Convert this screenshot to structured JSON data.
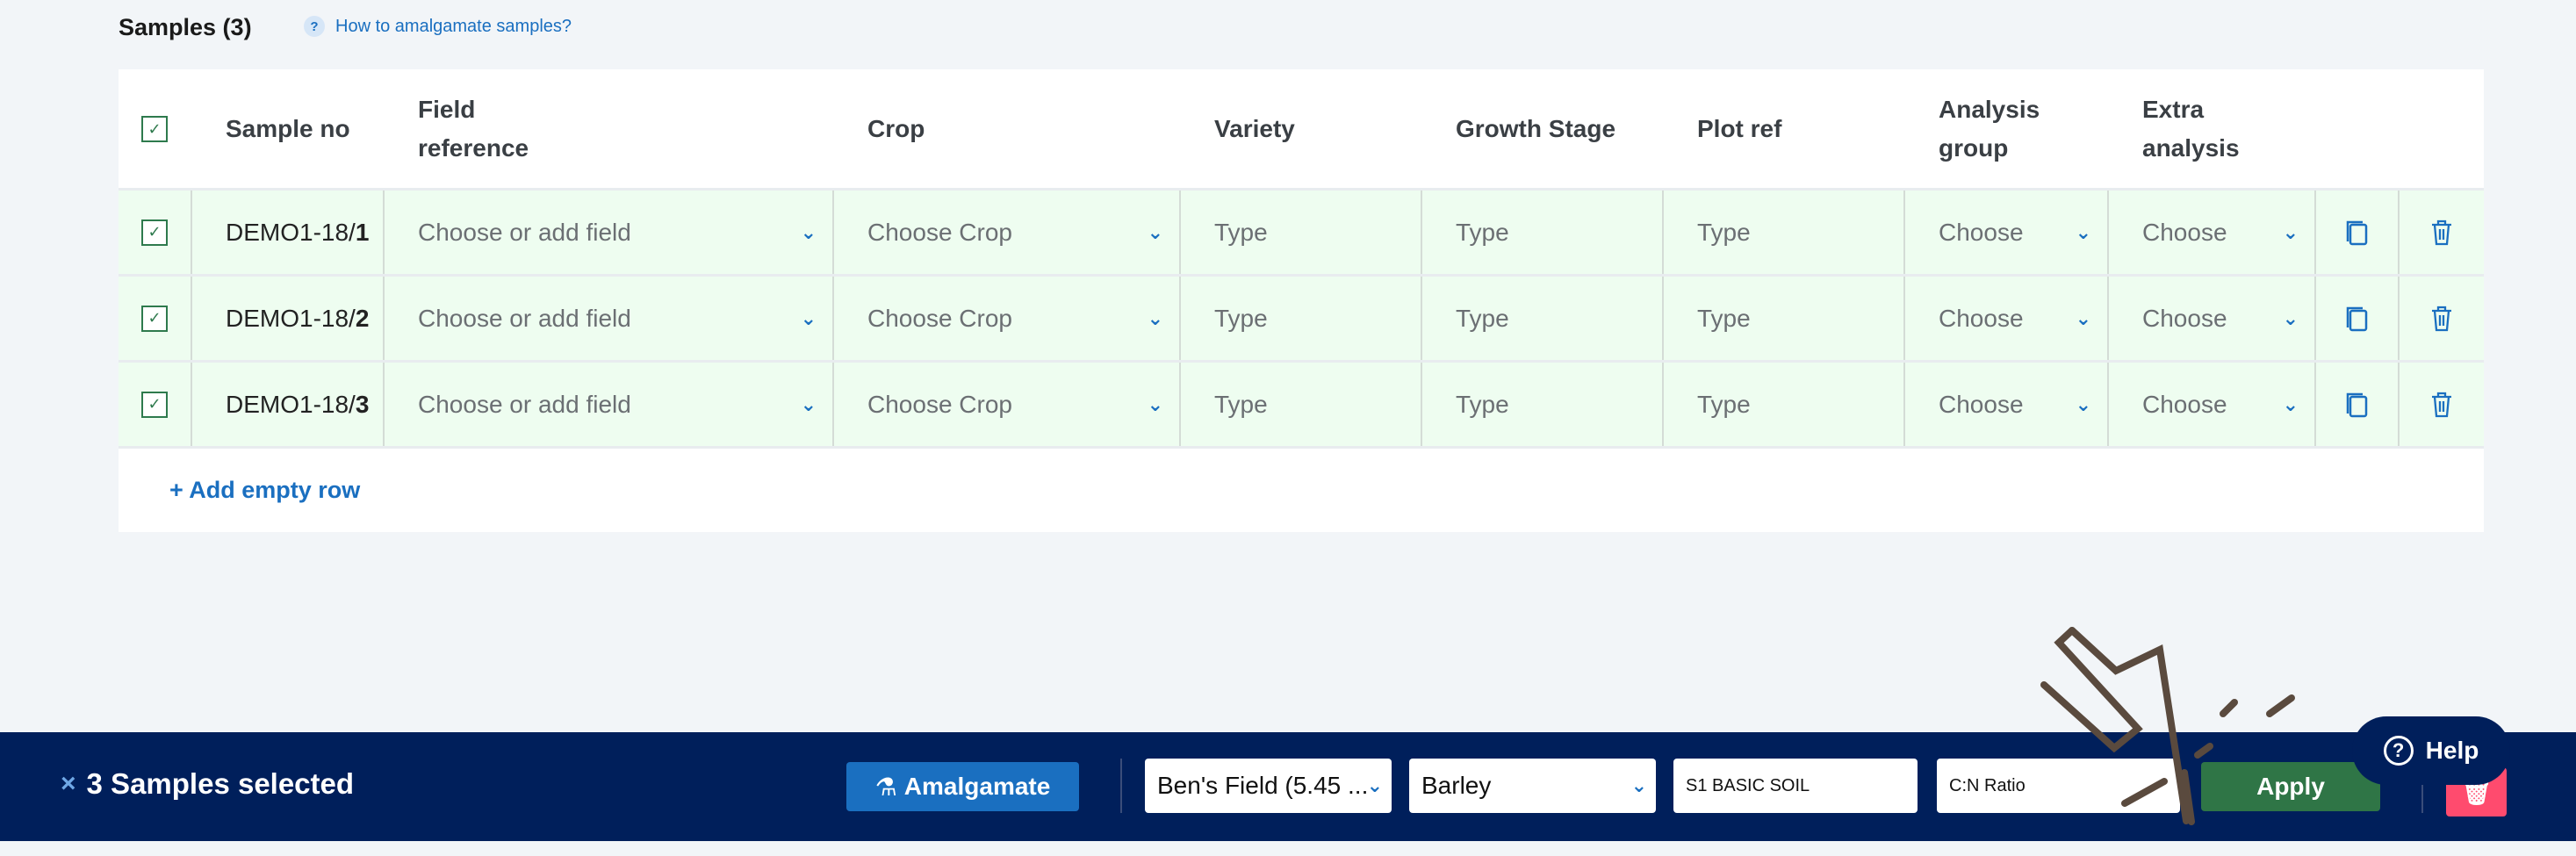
{
  "header": {
    "title": "Samples (3)",
    "help_link": "How to amalgamate samples?"
  },
  "table": {
    "columns": [
      "Sample no",
      "Field reference",
      "Crop",
      "Variety",
      "Growth Stage",
      "Plot ref",
      "Analysis group",
      "Extra analysis"
    ],
    "rows": [
      {
        "prefix": "DEMO1-18/",
        "num": "1",
        "field": "Choose or add field",
        "crop": "Choose Crop",
        "variety": "Type",
        "growth": "Type",
        "plot": "Type",
        "analysis": "Choose",
        "extra": "Choose",
        "checked": true
      },
      {
        "prefix": "DEMO1-18/",
        "num": "2",
        "field": "Choose or add field",
        "crop": "Choose Crop",
        "variety": "Type",
        "growth": "Type",
        "plot": "Type",
        "analysis": "Choose",
        "extra": "Choose",
        "checked": true
      },
      {
        "prefix": "DEMO1-18/",
        "num": "3",
        "field": "Choose or add field",
        "crop": "Choose Crop",
        "variety": "Type",
        "growth": "Type",
        "plot": "Type",
        "analysis": "Choose",
        "extra": "Choose",
        "checked": true
      }
    ],
    "add_row": "+ Add empty row"
  },
  "bottom_bar": {
    "selected": "3 Samples selected",
    "amalgamate": "Amalgamate",
    "field_select": "Ben's Field (5.45 ...",
    "crop_select": "Barley",
    "analysis_input": "S1 BASIC SOIL",
    "extra_input": "C:N Ratio",
    "apply": "Apply"
  },
  "help": {
    "label": "Help"
  },
  "colors": {
    "accent": "#1a6fc0",
    "bar": "#001f5b",
    "apply": "#2f7546",
    "delete": "#ff4b6e",
    "row": "#eefdf0"
  }
}
